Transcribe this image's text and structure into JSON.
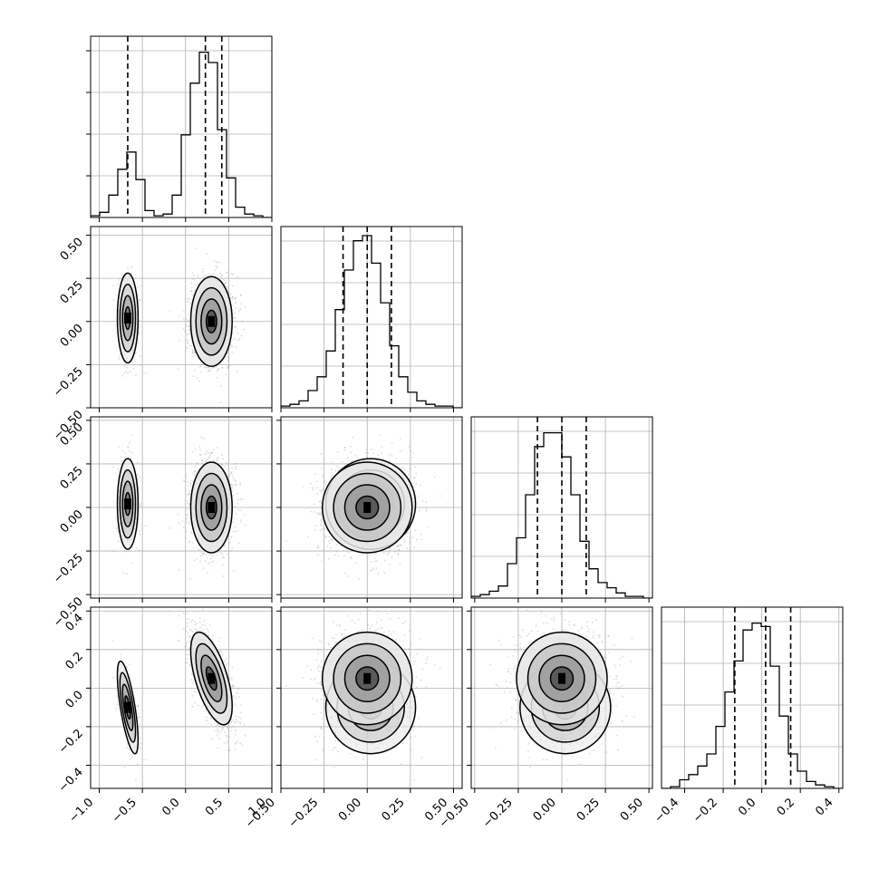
{
  "chart_data": {
    "type": "corner",
    "parameters": 4,
    "grid": true,
    "quantile_lines": "dashed",
    "line_color": "#000000",
    "scatter_color": "#9a9a9a",
    "x_tick_labels": [
      [
        "−1.0",
        "−0.5",
        "0.0",
        "0.5",
        "1.0"
      ],
      [
        "−0.50",
        "−0.25",
        "0.00",
        "0.25",
        "0.50"
      ],
      [
        "−0.50",
        "−0.25",
        "0.00",
        "0.25",
        "0.50"
      ],
      [
        "−0.4",
        "−0.2",
        "0.0",
        "0.2",
        "0.4"
      ]
    ],
    "y_tick_labels": [
      null,
      [
        "−0.50",
        "−0.25",
        "0.00",
        "0.25",
        "0.50"
      ],
      [
        "−0.50",
        "−0.25",
        "0.00",
        "0.25",
        "0.50"
      ],
      [
        "−0.4",
        "−0.2",
        "0.0",
        "0.2",
        "0.4"
      ]
    ],
    "params": [
      {
        "range": [
          -1.1,
          1.0
        ],
        "ticks": [
          -1.0,
          -0.5,
          0.0,
          0.5,
          1.0
        ],
        "hist_bin_values": [
          0.01,
          0.03,
          0.13,
          0.28,
          0.38,
          0.22,
          0.04,
          0.01,
          0.02,
          0.13,
          0.48,
          0.78,
          0.96,
          0.9,
          0.51,
          0.23,
          0.06,
          0.02,
          0.01,
          0.0
        ],
        "quantiles": [
          -0.67,
          0.23,
          0.42
        ]
      },
      {
        "range": [
          -0.5,
          0.55
        ],
        "ticks": [
          -0.5,
          -0.25,
          0.0,
          0.25,
          0.5
        ],
        "hist_bin_values": [
          0.01,
          0.02,
          0.04,
          0.1,
          0.18,
          0.33,
          0.57,
          0.8,
          0.97,
          1.0,
          0.84,
          0.61,
          0.36,
          0.18,
          0.09,
          0.04,
          0.02,
          0.01,
          0.01,
          0.0
        ],
        "quantiles": [
          -0.14,
          0.0,
          0.14
        ]
      },
      {
        "range": [
          -0.52,
          0.52
        ],
        "ticks": [
          -0.5,
          -0.25,
          0.0,
          0.25,
          0.5
        ],
        "hist_bin_values": [
          0.01,
          0.02,
          0.04,
          0.07,
          0.2,
          0.35,
          0.6,
          0.88,
          0.96,
          0.96,
          0.82,
          0.6,
          0.33,
          0.17,
          0.09,
          0.06,
          0.03,
          0.01,
          0.01,
          0.0
        ],
        "quantiles": [
          -0.14,
          0.0,
          0.14
        ]
      },
      {
        "range": [
          -0.52,
          0.42
        ],
        "ticks": [
          -0.4,
          -0.2,
          0.0,
          0.2,
          0.4
        ],
        "hist_bin_values": [
          0.0,
          0.01,
          0.05,
          0.08,
          0.13,
          0.2,
          0.36,
          0.56,
          0.74,
          0.92,
          0.96,
          0.94,
          0.71,
          0.42,
          0.2,
          0.1,
          0.04,
          0.02,
          0.01,
          0.0
        ],
        "quantiles": [
          -0.14,
          0.02,
          0.15
        ]
      }
    ],
    "mixture": {
      "weights": [
        0.2,
        0.8
      ],
      "means": [
        [
          -0.67,
          0.02,
          0.02,
          -0.1
        ],
        [
          0.3,
          0.0,
          0.0,
          0.05
        ]
      ],
      "sds": [
        [
          0.06,
          0.13,
          0.13,
          0.12
        ],
        [
          0.12,
          0.13,
          0.13,
          0.12
        ]
      ],
      "correlation_param1_param4": [
        -0.7,
        -0.6
      ]
    },
    "contour_levels_sigma": [
      0.5,
      1.0,
      1.5,
      2.0
    ]
  }
}
